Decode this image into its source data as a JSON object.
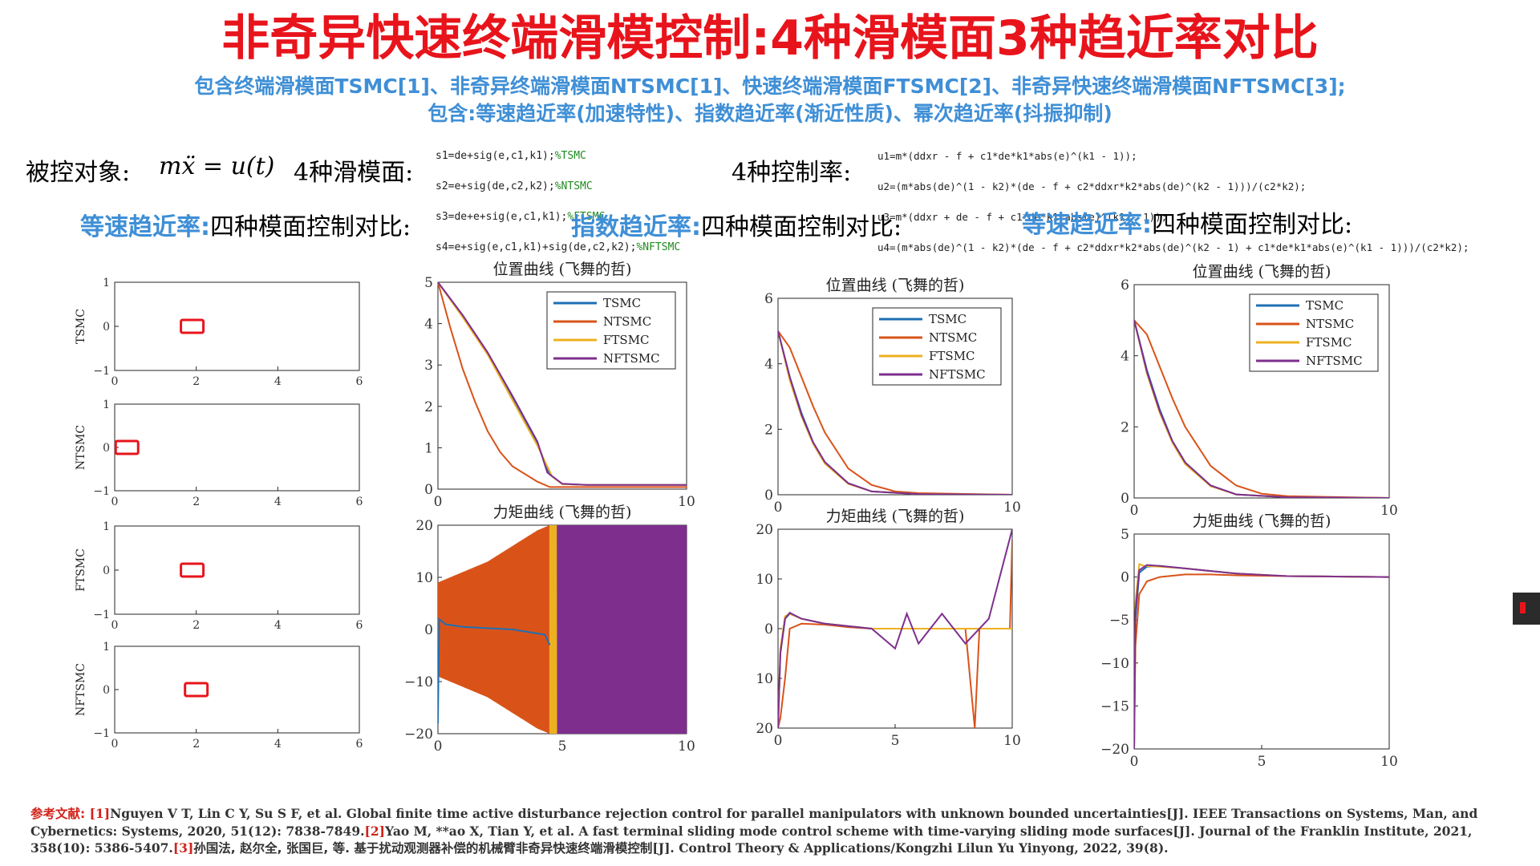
{
  "title": "非奇异快速终端滑模控制:4种滑模面3种趋近率对比",
  "subtitle1": {
    "p1": "包含终端滑模面",
    "t1": "TSMC",
    "r1": "[1]",
    "p2": "、非奇异终端滑模面",
    "t2": "NTSMC",
    "r2": "[1]",
    "p3": "、快速终端滑模面",
    "t3": "FTSMC",
    "r3": "[2]",
    "p4": "、非奇异快速终端滑模面",
    "t4": "NFTSMC",
    "r4": "[3]",
    "end": ";"
  },
  "subtitle2": "包含:等速趋近率(加速特性)、指数趋近率(渐近性质)、幂次趋近率(抖振抑制)",
  "plant": {
    "label": "被控对象:",
    "equation": "mẍ = u(t)"
  },
  "surfaces": {
    "label": "4种滑模面:",
    "lines": [
      {
        "code": "s1=de+sig(e,c1,k1);",
        "comment": "%TSMC"
      },
      {
        "code": "s2=e+sig(de,c2,k2);",
        "comment": "%NTSMC"
      },
      {
        "code": "s3=de+e+sig(e,c1,k1);",
        "comment": "%FTSMC"
      },
      {
        "code": "s4=e+sig(e,c1,k1)+sig(de,c2,k2);",
        "comment": "%NFTSMC"
      }
    ]
  },
  "control_laws": {
    "label": "4种控制率:",
    "lines": [
      "u1=m*(ddxr - f + c1*de*k1*abs(e)^(k1 - 1));",
      "u2=(m*abs(de)^(1 - k2)*(de - f + c2*ddxr*k2*abs(de)^(k2 - 1)))/(c2*k2);",
      "u3=m*(ddxr + de - f + c1*de*k1*abs(e)^(k1 - 1));",
      "u4=(m*abs(de)^(1 - k2)*(de - f + c2*ddxr*k2*abs(de)^(k2 - 1) + c1*de*k1*abs(e)^(k1 - 1)))/(c2*k2);"
    ]
  },
  "section_labels": [
    {
      "blue": "等速趋近率:",
      "black": "四种模面控制对比:"
    },
    {
      "blue": "指数趋近率:",
      "black": "四种模面控制对比:"
    },
    {
      "blue": "等速趋近率:",
      "black": "四种模面控制对比:"
    }
  ],
  "colors": {
    "TSMC": "#1f6fb4",
    "NTSMC": "#d95319",
    "FTSMC": "#edb120",
    "NFTSMC": "#7e2f8e",
    "title": "#e8141c",
    "accent": "#3f8fd6"
  },
  "references": {
    "label": "参考文献:",
    "items": [
      {
        "key": "[1]",
        "text": "Nguyen V T, Lin C Y, Su S F, et al. Global finite time active disturbance rejection control for parallel manipulators with unknown bounded uncertainties[J]. IEEE Transactions on Systems, Man, and Cybernetics: Systems, 2020, 51(12): 7838-7849."
      },
      {
        "key": "[2]",
        "text": "Yao M, **ao X, Tian Y, et al. A fast terminal sliding mode control scheme with time-varying sliding mode surfaces[J]. Journal of the Franklin Institute, 2021, 358(10): 5386-5407."
      },
      {
        "key": "[3]",
        "text_zh": "孙国法, 赵尔全, 张国巨, 等. 基于扰动观测器补偿的机械臂非奇异快速终端滑模控制",
        "text": "[J]. Control Theory & Applications/Kongzhi Lilun Yu Yinyong, 2022, 39(8)."
      }
    ]
  },
  "chart_data": [
    {
      "type": "scatter",
      "panel": "TSMC phase",
      "ylabel": "TSMC",
      "xlim": [
        0,
        6
      ],
      "ylim": [
        -1,
        1
      ],
      "xticks": [
        0,
        2,
        4,
        6
      ],
      "yticks": [
        -1,
        0,
        1
      ],
      "marker_x": 1.9,
      "marker_y": 0,
      "marker_color": "#e8141c"
    },
    {
      "type": "scatter",
      "panel": "NTSMC phase",
      "ylabel": "NTSMC",
      "xlim": [
        0,
        6
      ],
      "ylim": [
        -1,
        1
      ],
      "xticks": [
        0,
        2,
        4,
        6
      ],
      "yticks": [
        -1,
        0,
        1
      ],
      "marker_x": 0.3,
      "marker_y": 0,
      "marker_color": "#e8141c"
    },
    {
      "type": "scatter",
      "panel": "FTSMC phase",
      "ylabel": "FTSMC",
      "xlim": [
        0,
        6
      ],
      "ylim": [
        -1,
        1
      ],
      "xticks": [
        0,
        2,
        4,
        6
      ],
      "yticks": [
        -1,
        0,
        1
      ],
      "marker_x": 1.9,
      "marker_y": 0,
      "marker_color": "#e8141c"
    },
    {
      "type": "scatter",
      "panel": "NFTSMC phase",
      "ylabel": "NFTSMC",
      "xlim": [
        0,
        6
      ],
      "ylim": [
        -1,
        1
      ],
      "xticks": [
        0,
        2,
        4,
        6
      ],
      "yticks": [
        -1,
        0,
        1
      ],
      "marker_x": 2.0,
      "marker_y": 0,
      "marker_color": "#e8141c"
    },
    {
      "type": "line",
      "title": "位置曲线 (飞舞的哲)",
      "xlim": [
        0,
        10
      ],
      "ylim": [
        0,
        5
      ],
      "xticks": [
        0,
        10
      ],
      "yticks": [
        0,
        1,
        2,
        3,
        4,
        5
      ],
      "legend": "top-right",
      "series": [
        {
          "name": "TSMC",
          "x": [
            0,
            1,
            2,
            3,
            4,
            4.5,
            5,
            6,
            8,
            10
          ],
          "y": [
            5,
            4.2,
            3.3,
            2.2,
            1.1,
            0.35,
            0.12,
            0.1,
            0.1,
            0.1
          ]
        },
        {
          "name": "NTSMC",
          "x": [
            0,
            0.5,
            1,
            1.5,
            2,
            2.5,
            3,
            4,
            4.5,
            6,
            10
          ],
          "y": [
            5,
            3.9,
            2.9,
            2.1,
            1.4,
            0.9,
            0.55,
            0.18,
            0.05,
            0.05,
            0.05
          ]
        },
        {
          "name": "FTSMC",
          "x": [
            0,
            1,
            2,
            3,
            4,
            4.6,
            5,
            6,
            8,
            10
          ],
          "y": [
            5,
            4.15,
            3.25,
            2.15,
            1.05,
            0.3,
            0.12,
            0.1,
            0.1,
            0.1
          ]
        },
        {
          "name": "NFTSMC",
          "x": [
            0,
            1,
            2,
            3,
            4,
            4.4,
            5,
            6,
            8,
            10
          ],
          "y": [
            5,
            4.2,
            3.3,
            2.25,
            1.15,
            0.4,
            0.13,
            0.1,
            0.1,
            0.1
          ]
        }
      ]
    },
    {
      "type": "area",
      "title": "力矩曲线 (飞舞的哲)",
      "xlim": [
        0,
        10
      ],
      "ylim": [
        -20,
        20
      ],
      "xticks": [
        0,
        5,
        10
      ],
      "yticks": [
        -20,
        -10,
        0,
        10,
        20
      ],
      "series": [
        {
          "name": "NTSMC",
          "x": [
            0,
            1,
            2,
            3,
            4,
            4.5
          ],
          "upper": [
            9,
            11,
            13,
            16,
            19,
            20
          ],
          "lower": [
            -9,
            -11,
            -13,
            -16,
            -19,
            -20
          ]
        },
        {
          "name": "FTSMC",
          "x": [
            4.5,
            4.8
          ],
          "upper": [
            20,
            20
          ],
          "lower": [
            -20,
            -20
          ]
        },
        {
          "name": "NFTSMC",
          "x": [
            4.8,
            10
          ],
          "upper": [
            20,
            20
          ],
          "lower": [
            -20,
            -20
          ]
        },
        {
          "name": "TSMC",
          "x": [
            0,
            0.05,
            0.3,
            1,
            3,
            4.3,
            4.5
          ],
          "y": [
            -18,
            2,
            1,
            0.5,
            0,
            -1,
            -3
          ]
        }
      ]
    },
    {
      "type": "line",
      "title": "位置曲线 (飞舞的哲)",
      "xlim": [
        0,
        10
      ],
      "ylim": [
        0,
        6
      ],
      "xticks": [
        0,
        10
      ],
      "yticks": [
        0,
        2,
        4,
        6
      ],
      "legend": "top-right",
      "series": [
        {
          "name": "TSMC",
          "x": [
            0,
            0.5,
            1,
            1.5,
            2,
            3,
            4,
            6,
            10
          ],
          "y": [
            5,
            3.6,
            2.5,
            1.6,
            1.0,
            0.35,
            0.1,
            0.02,
            0
          ]
        },
        {
          "name": "NTSMC",
          "x": [
            0,
            0.5,
            1,
            1.5,
            2,
            3,
            4,
            5,
            6,
            10
          ],
          "y": [
            5,
            4.5,
            3.6,
            2.7,
            1.9,
            0.8,
            0.3,
            0.1,
            0.05,
            0
          ]
        },
        {
          "name": "FTSMC",
          "x": [
            0,
            0.5,
            1,
            1.5,
            2,
            3,
            4,
            6,
            10
          ],
          "y": [
            5,
            3.5,
            2.4,
            1.55,
            0.95,
            0.33,
            0.1,
            0.02,
            0
          ]
        },
        {
          "name": "NFTSMC",
          "x": [
            0,
            0.5,
            1,
            1.5,
            2,
            3,
            4,
            6,
            10
          ],
          "y": [
            5,
            3.6,
            2.45,
            1.6,
            1.0,
            0.35,
            0.1,
            0.02,
            0
          ]
        }
      ]
    },
    {
      "type": "line",
      "title": "力矩曲线 (飞舞的哲)",
      "xlim": [
        0,
        10
      ],
      "ylim": [
        -20,
        20
      ],
      "xticks": [
        0,
        5,
        10
      ],
      "yticks": [
        -20,
        -10,
        0,
        10,
        20
      ],
      "yticklabels": [
        "20",
        "10",
        "0",
        "10",
        "20"
      ],
      "series": [
        {
          "name": "NTSMC",
          "x": [
            0,
            0.1,
            0.3,
            0.5,
            1,
            2,
            3,
            4,
            5,
            6,
            7,
            8,
            8.4,
            8.6,
            9,
            9.9,
            10
          ],
          "y": [
            -20,
            -18,
            -10,
            0,
            1,
            0.8,
            0.3,
            0,
            0,
            0,
            0,
            0,
            -20,
            0,
            0,
            0,
            18
          ]
        },
        {
          "name": "TSMC",
          "x": [
            0,
            0.1,
            0.3,
            0.5,
            1,
            2,
            3,
            4,
            5,
            6,
            8,
            10
          ],
          "y": [
            -20,
            -5,
            2,
            3,
            2,
            1,
            0.5,
            0,
            0,
            0,
            0,
            0
          ]
        },
        {
          "name": "FTSMC",
          "x": [
            0,
            0.1,
            0.3,
            0.5,
            1,
            2,
            3,
            4,
            5,
            10
          ],
          "y": [
            -20,
            -4,
            2.5,
            3,
            2,
            1,
            0.5,
            0,
            0,
            0
          ]
        },
        {
          "name": "NFTSMC",
          "x": [
            0,
            0.1,
            0.3,
            0.5,
            1,
            2,
            3,
            4,
            5,
            5.5,
            6,
            7,
            8,
            9,
            10
          ],
          "y": [
            -20,
            -5,
            2,
            3.2,
            2,
            1,
            0.5,
            0,
            -4,
            3,
            -3,
            3,
            -3,
            2,
            20
          ]
        }
      ]
    },
    {
      "type": "line",
      "title": "位置曲线 (飞舞的哲)",
      "xlim": [
        0,
        10
      ],
      "ylim": [
        0,
        6
      ],
      "xticks": [
        0,
        10
      ],
      "yticks": [
        0,
        2,
        4,
        6
      ],
      "legend": "top-right",
      "series": [
        {
          "name": "TSMC",
          "x": [
            0,
            0.5,
            1,
            1.5,
            2,
            3,
            4,
            6,
            10
          ],
          "y": [
            5,
            3.6,
            2.5,
            1.6,
            1.0,
            0.35,
            0.1,
            0.02,
            0
          ]
        },
        {
          "name": "NTSMC",
          "x": [
            0,
            0.5,
            1,
            1.5,
            2,
            3,
            4,
            5,
            6,
            10
          ],
          "y": [
            5,
            4.6,
            3.7,
            2.8,
            2.0,
            0.9,
            0.35,
            0.12,
            0.05,
            0
          ]
        },
        {
          "name": "FTSMC",
          "x": [
            0,
            0.5,
            1,
            1.5,
            2,
            3,
            4,
            6,
            10
          ],
          "y": [
            5,
            3.5,
            2.4,
            1.55,
            0.95,
            0.33,
            0.1,
            0.02,
            0
          ]
        },
        {
          "name": "NFTSMC",
          "x": [
            0,
            0.5,
            1,
            1.5,
            2,
            3,
            4,
            6,
            10
          ],
          "y": [
            5,
            3.55,
            2.45,
            1.6,
            1.0,
            0.35,
            0.1,
            0.02,
            0
          ]
        }
      ]
    },
    {
      "type": "line",
      "title": "力矩曲线 (飞舞的哲)",
      "xlim": [
        0,
        10
      ],
      "ylim": [
        -20,
        5
      ],
      "xticks": [
        0,
        5,
        10
      ],
      "yticks": [
        -20,
        -15,
        -10,
        -5,
        0,
        5
      ],
      "series": [
        {
          "name": "TSMC",
          "x": [
            0,
            0.05,
            0.2,
            0.5,
            1,
            2,
            3,
            4,
            6,
            10
          ],
          "y": [
            -20,
            -5,
            0.5,
            1.2,
            1.3,
            1.0,
            0.7,
            0.4,
            0.1,
            0
          ]
        },
        {
          "name": "NTSMC",
          "x": [
            0,
            0.05,
            0.2,
            0.5,
            1,
            2,
            3,
            4,
            6,
            10
          ],
          "y": [
            -20,
            -8,
            -2,
            -0.5,
            0,
            0.3,
            0.3,
            0.2,
            0.1,
            0
          ]
        },
        {
          "name": "FTSMC",
          "x": [
            0,
            0.05,
            0.2,
            0.4,
            1,
            2,
            3,
            4,
            6,
            10
          ],
          "y": [
            -20,
            -3,
            1.5,
            1.3,
            1.2,
            1.0,
            0.7,
            0.4,
            0.1,
            0
          ]
        },
        {
          "name": "NFTSMC",
          "x": [
            0,
            0.05,
            0.2,
            0.5,
            1,
            2,
            3,
            4,
            6,
            10
          ],
          "y": [
            -20,
            -4,
            0.8,
            1.4,
            1.3,
            1.0,
            0.7,
            0.4,
            0.1,
            0
          ]
        }
      ]
    }
  ]
}
